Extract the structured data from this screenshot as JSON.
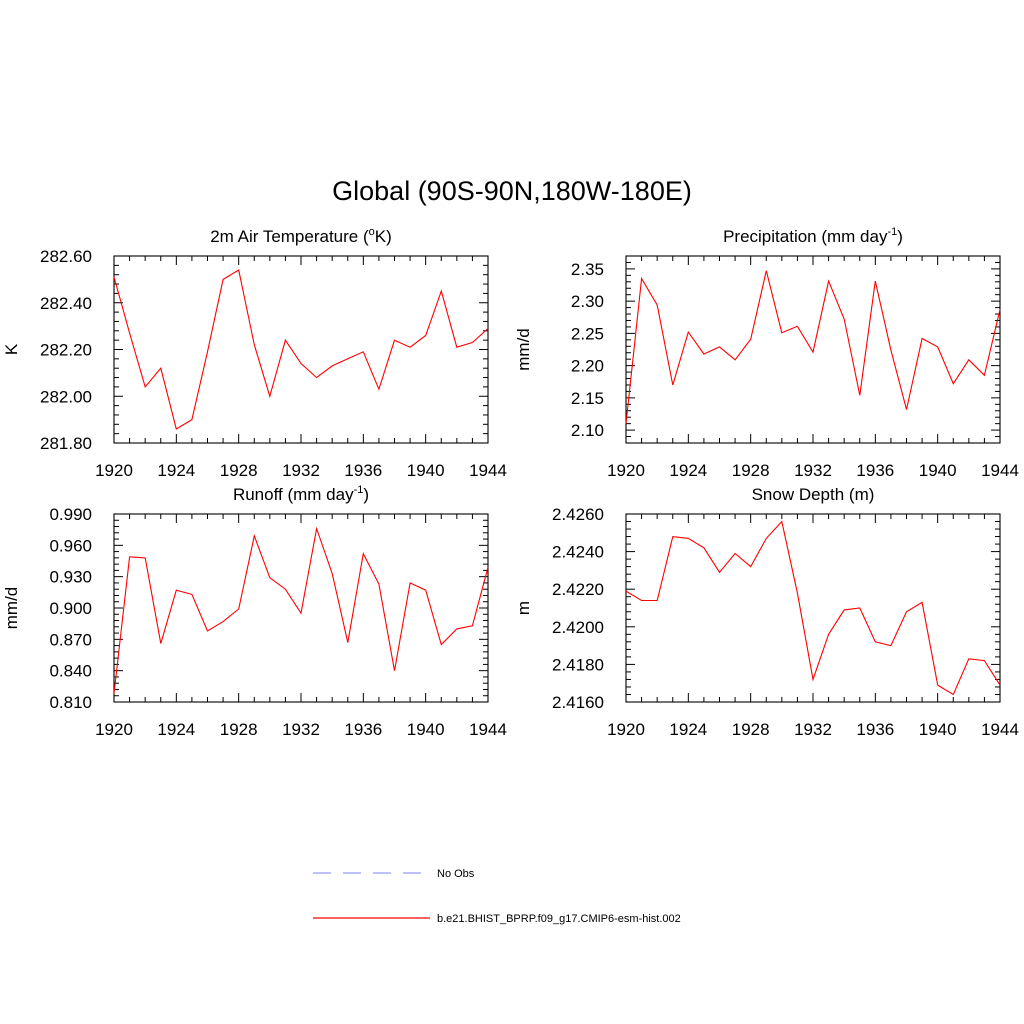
{
  "page": {
    "title": "Global (90S-90N,180W-180E)"
  },
  "legend": {
    "entries": [
      {
        "label": "No Obs",
        "color": "#9999ff",
        "dash": "dashed"
      },
      {
        "label": "b.e21.BHIST_BPRP.f09_g17.CMIP6-esm-hist.002",
        "color": "#ff0000",
        "dash": "solid"
      }
    ]
  },
  "chart_data": [
    {
      "type": "line",
      "title": "2m Air Temperature (",
      "title_sup": "o",
      "title_suffix": "K)",
      "ylabel": "K",
      "xlabel": "",
      "xlim": [
        1920,
        1944
      ],
      "ylim": [
        281.8,
        282.6
      ],
      "xticks": [
        "1920",
        "1924",
        "1928",
        "1932",
        "1936",
        "1940",
        "1944"
      ],
      "yticks": [
        "281.80",
        "282.00",
        "282.20",
        "282.40",
        "282.60"
      ],
      "series": [
        {
          "name": "b.e21.BHIST_BPRP.f09_g17.CMIP6-esm-hist.002",
          "color": "#ff0000",
          "x": [
            1920,
            1921,
            1922,
            1923,
            1924,
            1925,
            1926,
            1927,
            1928,
            1929,
            1930,
            1931,
            1932,
            1933,
            1934,
            1935,
            1936,
            1937,
            1938,
            1939,
            1940,
            1941,
            1942,
            1943,
            1944
          ],
          "values": [
            282.51,
            282.27,
            282.04,
            282.12,
            281.86,
            281.9,
            282.19,
            282.5,
            282.54,
            282.22,
            282.0,
            282.24,
            282.14,
            282.08,
            282.13,
            282.16,
            282.19,
            282.03,
            282.24,
            282.21,
            282.26,
            282.45,
            282.21,
            282.23,
            282.29
          ]
        }
      ]
    },
    {
      "type": "line",
      "title": "Precipitation (mm day",
      "title_sup": "-1",
      "title_suffix": ")",
      "ylabel": "mm/d",
      "xlabel": "",
      "xlim": [
        1920,
        1944
      ],
      "ylim": [
        2.08,
        2.37
      ],
      "xticks": [
        "1920",
        "1924",
        "1928",
        "1932",
        "1936",
        "1940",
        "1944"
      ],
      "yticks": [
        "2.10",
        "2.15",
        "2.20",
        "2.25",
        "2.30",
        "2.35"
      ],
      "series": [
        {
          "name": "b.e21.BHIST_BPRP.f09_g17.CMIP6-esm-hist.002",
          "color": "#ff0000",
          "x": [
            1920,
            1921,
            1922,
            1923,
            1924,
            1925,
            1926,
            1927,
            1928,
            1929,
            1930,
            1931,
            1932,
            1933,
            1934,
            1935,
            1936,
            1937,
            1938,
            1939,
            1940,
            1941,
            1942,
            1943,
            1944
          ],
          "values": [
            2.11,
            2.335,
            2.294,
            2.17,
            2.252,
            2.218,
            2.229,
            2.209,
            2.241,
            2.347,
            2.251,
            2.261,
            2.221,
            2.331,
            2.272,
            2.154,
            2.331,
            2.224,
            2.132,
            2.242,
            2.229,
            2.172,
            2.209,
            2.185,
            2.287
          ]
        }
      ]
    },
    {
      "type": "line",
      "title": "Runoff (mm day",
      "title_sup": "-1",
      "title_suffix": ")",
      "ylabel": "mm/d",
      "xlabel": "",
      "xlim": [
        1920,
        1944
      ],
      "ylim": [
        0.81,
        0.99
      ],
      "xticks": [
        "1920",
        "1924",
        "1928",
        "1932",
        "1936",
        "1940",
        "1944"
      ],
      "yticks": [
        "0.810",
        "0.840",
        "0.870",
        "0.900",
        "0.930",
        "0.960",
        "0.990"
      ],
      "series": [
        {
          "name": "b.e21.BHIST_BPRP.f09_g17.CMIP6-esm-hist.002",
          "color": "#ff0000",
          "x": [
            1920,
            1921,
            1922,
            1923,
            1924,
            1925,
            1926,
            1927,
            1928,
            1929,
            1930,
            1931,
            1932,
            1933,
            1934,
            1935,
            1936,
            1937,
            1938,
            1939,
            1940,
            1941,
            1942,
            1943,
            1944
          ],
          "values": [
            0.818,
            0.949,
            0.948,
            0.866,
            0.917,
            0.913,
            0.878,
            0.887,
            0.899,
            0.969,
            0.929,
            0.918,
            0.895,
            0.976,
            0.933,
            0.867,
            0.952,
            0.923,
            0.84,
            0.924,
            0.917,
            0.865,
            0.88,
            0.883,
            0.939
          ]
        }
      ]
    },
    {
      "type": "line",
      "title": "Snow Depth (m)",
      "title_sup": "",
      "title_suffix": "",
      "ylabel": "m",
      "xlabel": "",
      "xlim": [
        1920,
        1944
      ],
      "ylim": [
        2.416,
        2.426
      ],
      "xticks": [
        "1920",
        "1924",
        "1928",
        "1932",
        "1936",
        "1940",
        "1944"
      ],
      "yticks": [
        "2.4160",
        "2.4180",
        "2.4200",
        "2.4220",
        "2.4240",
        "2.4260"
      ],
      "series": [
        {
          "name": "b.e21.BHIST_BPRP.f09_g17.CMIP6-esm-hist.002",
          "color": "#ff0000",
          "x": [
            1920,
            1921,
            1922,
            1923,
            1924,
            1925,
            1926,
            1927,
            1928,
            1929,
            1930,
            1931,
            1932,
            1933,
            1934,
            1935,
            1936,
            1937,
            1938,
            1939,
            1940,
            1941,
            1942,
            1943,
            1944
          ],
          "values": [
            2.4219,
            2.4214,
            2.4214,
            2.4248,
            2.4247,
            2.4242,
            2.4229,
            2.4239,
            2.4232,
            2.4247,
            2.4256,
            2.4218,
            2.4172,
            2.4196,
            2.4209,
            2.421,
            2.4192,
            2.419,
            2.4208,
            2.4213,
            2.4169,
            2.4164,
            2.4183,
            2.4182,
            2.4169
          ]
        }
      ]
    }
  ]
}
